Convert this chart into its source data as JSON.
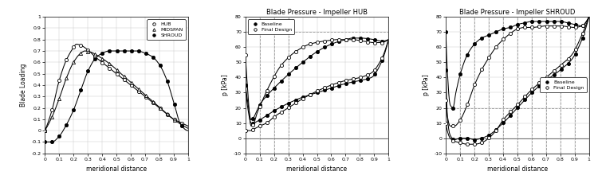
{
  "plot1": {
    "title": "",
    "xlabel": "meridional distance",
    "ylabel": "Blade Loading",
    "xlim": [
      0,
      1
    ],
    "ylim": [
      -0.2,
      1.0
    ],
    "xticks": [
      0,
      0.1,
      0.2,
      0.3,
      0.4,
      0.5,
      0.6,
      0.7,
      0.8,
      0.9,
      1
    ],
    "yticks": [
      -0.2,
      -0.1,
      0,
      0.1,
      0.2,
      0.3,
      0.4,
      0.5,
      0.6,
      0.7,
      0.8,
      0.9,
      1
    ]
  },
  "plot2": {
    "title": "Blade Pressure - Impeller HUB",
    "xlabel": "meridional distance",
    "ylabel": "p [kPa]",
    "xlim": [
      0,
      1
    ],
    "ylim": [
      -10,
      80
    ],
    "xticks": [
      0,
      0.1,
      0.2,
      0.3,
      0.4,
      0.5,
      0.6,
      0.7,
      0.8,
      0.9,
      1
    ],
    "yticks": [
      -10,
      0,
      10,
      20,
      30,
      40,
      50,
      60,
      70,
      80
    ],
    "vlines": [
      0.1,
      0.2,
      0.3
    ],
    "hline": 70
  },
  "plot3": {
    "title": "Blade Pressure - Impeller SHROUD",
    "xlabel": "meridional distance",
    "ylabel": "p [kPa]",
    "xlim": [
      0,
      1
    ],
    "ylim": [
      -10,
      80
    ],
    "xticks": [
      0,
      0.1,
      0.2,
      0.3,
      0.4,
      0.5,
      0.6,
      0.7,
      0.8,
      0.9,
      1
    ],
    "yticks": [
      -10,
      0,
      10,
      20,
      30,
      40,
      50,
      60,
      70,
      80
    ],
    "vlines": [
      0.1,
      0.2,
      0.3,
      0.4,
      0.5,
      0.6,
      0.7,
      0.8,
      0.9
    ],
    "hline": 20
  }
}
